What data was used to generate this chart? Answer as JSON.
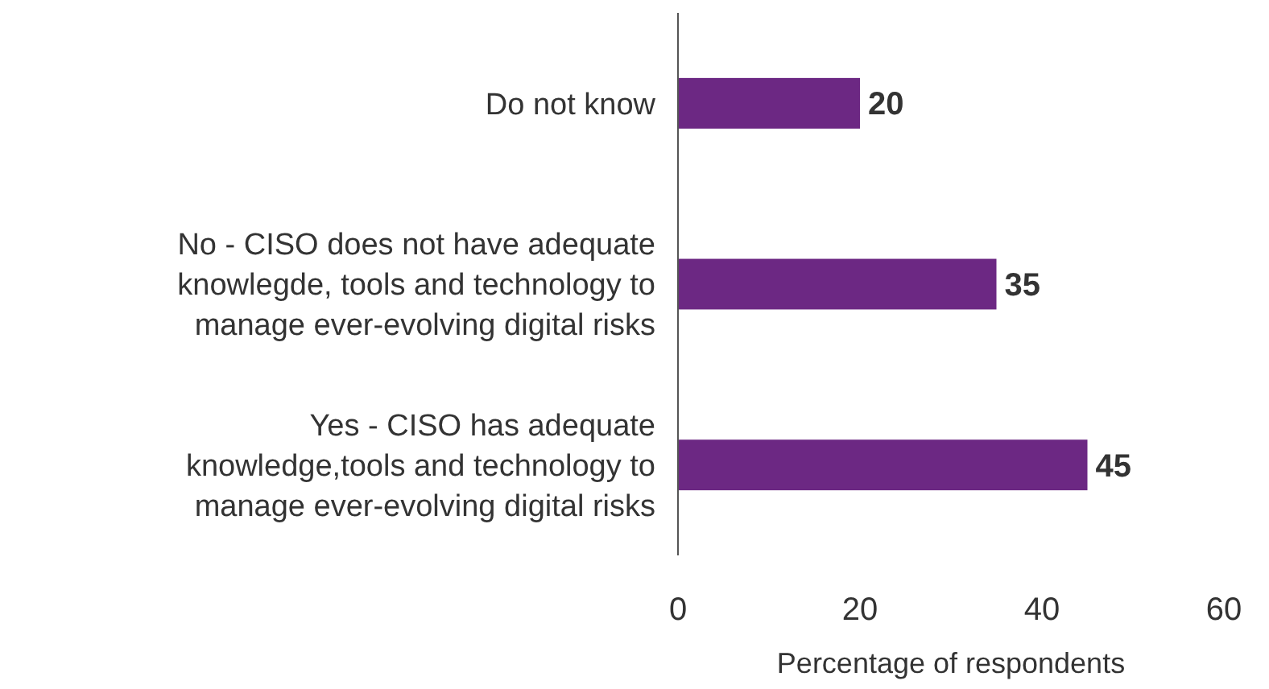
{
  "chart_data": {
    "type": "bar",
    "orientation": "horizontal",
    "xlabel": "Percentage of respondents",
    "categories": [
      "Do not know",
      "No - CISO does not have adequate knowlegde, tools and technology to manage ever-evolving digital risks",
      "Yes - CISO has adequate knowledge,tools and technology to manage ever-evolving digital risks"
    ],
    "values": [
      20,
      35,
      45
    ],
    "color": "#6c2883",
    "xlim": [
      0,
      60
    ],
    "xticks": [
      0,
      20,
      40,
      60
    ],
    "data_labels": true,
    "grid": false
  }
}
